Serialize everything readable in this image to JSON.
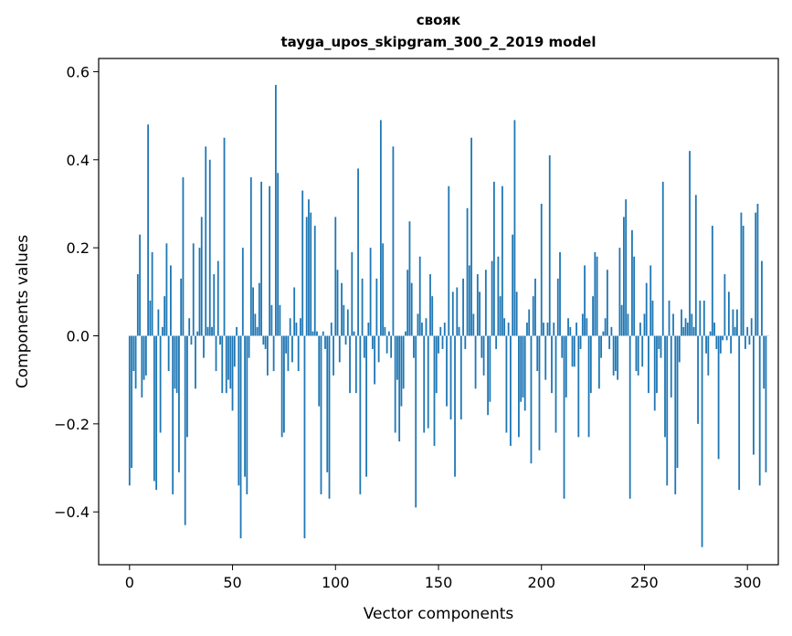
{
  "chart_data": {
    "type": "bar",
    "title": "свояк",
    "subtitle": "tayga_upos_skipgram_300_2_2019 model",
    "xlabel": "Vector components",
    "ylabel": "Components values",
    "xlim": [
      -15,
      315
    ],
    "ylim": [
      -0.52,
      0.63
    ],
    "xticks": [
      0,
      50,
      100,
      150,
      200,
      250,
      300
    ],
    "xtick_labels": [
      "0",
      "50",
      "100",
      "150",
      "200",
      "250",
      "300"
    ],
    "yticks": [
      -0.4,
      -0.2,
      0.0,
      0.2,
      0.4,
      0.6
    ],
    "ytick_labels": [
      "−0.4",
      "−0.2",
      "0.0",
      "0.2",
      "0.4",
      "0.6"
    ],
    "bar_color": "#1f77b4",
    "grid": false,
    "legend": "none",
    "values": [
      -0.34,
      -0.3,
      -0.08,
      -0.12,
      0.14,
      0.23,
      -0.14,
      -0.1,
      -0.09,
      0.48,
      0.08,
      0.19,
      -0.33,
      -0.35,
      0.06,
      -0.22,
      0.02,
      0.09,
      0.21,
      -0.08,
      0.16,
      -0.36,
      -0.12,
      -0.13,
      -0.31,
      0.13,
      0.36,
      -0.43,
      -0.23,
      0.04,
      -0.02,
      0.21,
      -0.12,
      0.01,
      0.2,
      0.27,
      -0.05,
      0.43,
      0.02,
      0.4,
      0.02,
      0.14,
      -0.08,
      0.17,
      -0.02,
      -0.13,
      0.45,
      -0.13,
      -0.1,
      -0.12,
      -0.17,
      -0.07,
      0.02,
      -0.34,
      -0.46,
      0.2,
      -0.32,
      -0.36,
      -0.05,
      0.36,
      0.11,
      0.05,
      0.02,
      0.12,
      0.35,
      -0.02,
      -0.03,
      -0.09,
      0.34,
      0.07,
      -0.08,
      0.57,
      0.37,
      0.07,
      -0.23,
      -0.22,
      -0.04,
      -0.08,
      0.04,
      -0.06,
      0.11,
      0.03,
      -0.08,
      0.04,
      0.33,
      -0.46,
      0.27,
      0.31,
      0.28,
      0.01,
      0.25,
      0.01,
      -0.16,
      -0.36,
      0.01,
      -0.03,
      -0.31,
      -0.37,
      0.03,
      -0.09,
      0.27,
      0.15,
      -0.06,
      0.12,
      0.07,
      -0.02,
      0.06,
      -0.13,
      0.19,
      0.01,
      -0.13,
      0.38,
      -0.36,
      0.13,
      -0.05,
      -0.32,
      0.03,
      0.2,
      -0.03,
      -0.11,
      0.13,
      -0.06,
      0.49,
      0.21,
      0.02,
      -0.04,
      0.01,
      -0.05,
      0.43,
      -0.22,
      -0.1,
      -0.24,
      -0.16,
      -0.12,
      0.01,
      0.15,
      0.26,
      0.12,
      -0.05,
      -0.39,
      0.05,
      0.18,
      0.03,
      -0.22,
      0.04,
      -0.21,
      0.14,
      0.09,
      -0.25,
      -0.13,
      -0.04,
      0.02,
      -0.03,
      0.03,
      -0.16,
      0.34,
      -0.19,
      0.1,
      -0.32,
      0.11,
      0.02,
      -0.19,
      0.13,
      -0.03,
      0.29,
      0.16,
      0.45,
      0.05,
      -0.12,
      0.14,
      0.1,
      -0.05,
      -0.09,
      0.15,
      -0.18,
      -0.15,
      0.17,
      0.35,
      -0.03,
      0.18,
      0.09,
      0.34,
      0.04,
      -0.22,
      0.03,
      -0.25,
      0.23,
      0.49,
      0.1,
      -0.23,
      -0.15,
      -0.14,
      -0.17,
      0.03,
      0.06,
      -0.29,
      0.09,
      0.13,
      -0.08,
      -0.26,
      0.3,
      0.03,
      -0.1,
      0.03,
      0.41,
      -0.13,
      0.03,
      -0.22,
      0.13,
      0.19,
      -0.05,
      -0.37,
      -0.14,
      0.04,
      0.02,
      -0.07,
      -0.07,
      0.03,
      -0.23,
      -0.03,
      0.05,
      0.16,
      0.04,
      -0.23,
      -0.13,
      0.09,
      0.19,
      0.18,
      -0.12,
      -0.05,
      0.01,
      0.04,
      0.15,
      -0.03,
      0.02,
      -0.09,
      -0.08,
      -0.1,
      0.2,
      0.07,
      0.27,
      0.31,
      0.05,
      -0.37,
      0.24,
      0.18,
      -0.08,
      -0.09,
      0.03,
      -0.07,
      0.05,
      0.12,
      -0.13,
      0.16,
      0.08,
      -0.17,
      -0.13,
      -0.03,
      -0.05,
      0.35,
      -0.23,
      -0.34,
      0.08,
      -0.14,
      0.05,
      -0.36,
      -0.3,
      -0.06,
      0.06,
      0.02,
      0.04,
      0.03,
      0.42,
      0.05,
      0.02,
      0.32,
      -0.2,
      0.08,
      -0.48,
      0.08,
      -0.04,
      -0.09,
      0.01,
      0.25,
      0.03,
      -0.03,
      -0.28,
      -0.04,
      -0.01,
      0.14,
      -0.01,
      0.1,
      -0.04,
      0.06,
      0.02,
      0.06,
      -0.35,
      0.28,
      0.25,
      -0.03,
      0.02,
      -0.02,
      0.04,
      -0.27,
      0.28,
      0.3,
      -0.34,
      0.17,
      -0.12,
      -0.31,
      0.0
    ]
  }
}
